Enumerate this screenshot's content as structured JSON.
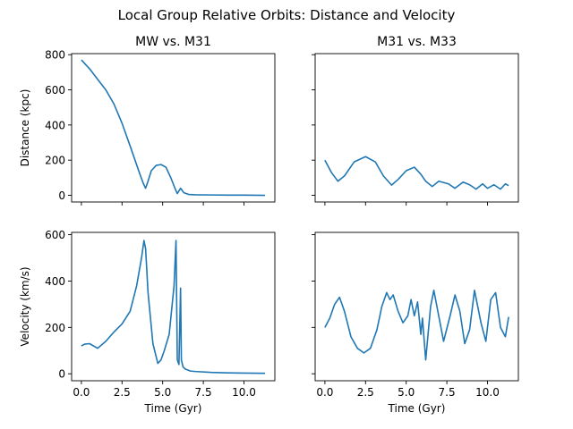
{
  "figure": {
    "suptitle": "Local Group Relative Orbits: Distance and Velocity"
  },
  "chart_data": [
    {
      "type": "line",
      "title": "MW vs. M31",
      "xlabel": "",
      "ylabel": "Distance (kpc)",
      "xlim": [
        -0.6,
        11.9
      ],
      "ylim": [
        -38,
        806
      ],
      "xticks": [
        0,
        2.5,
        5,
        7.5,
        10
      ],
      "xtick_labels_shown": false,
      "yticks": [
        0,
        200,
        400,
        600,
        800
      ],
      "ytick_labels": [
        "0",
        "200",
        "400",
        "600",
        "800"
      ],
      "grid": false,
      "color": "#1f77b4",
      "x": [
        0,
        0.5,
        1,
        1.5,
        2,
        2.5,
        3,
        3.3,
        3.6,
        3.8,
        3.95,
        4.1,
        4.3,
        4.6,
        4.9,
        5.2,
        5.5,
        5.8,
        5.9,
        6.1,
        6.3,
        6.6,
        7,
        8,
        9,
        10,
        11.3
      ],
      "y": [
        770,
        720,
        660,
        600,
        520,
        410,
        280,
        200,
        120,
        70,
        40,
        80,
        140,
        170,
        175,
        160,
        100,
        30,
        10,
        40,
        15,
        5,
        3,
        2,
        1,
        1,
        0
      ]
    },
    {
      "type": "line",
      "title": "M31 vs. M33",
      "xlabel": "",
      "ylabel": "",
      "xlim": [
        -0.6,
        11.9
      ],
      "ylim": [
        -38,
        806
      ],
      "xticks": [
        0,
        2.5,
        5,
        7.5,
        10
      ],
      "xtick_labels_shown": false,
      "yticks": [
        0,
        200,
        400,
        600,
        800
      ],
      "ytick_labels_shown": false,
      "grid": false,
      "color": "#1f77b4",
      "x": [
        0,
        0.4,
        0.8,
        1.2,
        1.8,
        2.5,
        3.1,
        3.6,
        4.1,
        4.5,
        5.0,
        5.5,
        5.9,
        6.2,
        6.6,
        7.0,
        7.6,
        8.0,
        8.5,
        8.9,
        9.3,
        9.7,
        10.0,
        10.4,
        10.8,
        11.1,
        11.3
      ],
      "y": [
        200,
        130,
        80,
        110,
        190,
        220,
        190,
        110,
        58,
        90,
        140,
        160,
        120,
        80,
        50,
        80,
        65,
        40,
        75,
        60,
        35,
        65,
        40,
        60,
        35,
        65,
        55
      ]
    },
    {
      "type": "line",
      "title": "",
      "xlabel": "Time (Gyr)",
      "ylabel": "Velocity (km/s)",
      "xlim": [
        -0.6,
        11.9
      ],
      "ylim": [
        -30,
        610
      ],
      "xticks": [
        0,
        2.5,
        5,
        7.5,
        10
      ],
      "xtick_labels": [
        "0.0",
        "2.5",
        "5.0",
        "7.5",
        "10.0"
      ],
      "yticks": [
        0,
        200,
        400,
        600
      ],
      "ytick_labels": [
        "0",
        "200",
        "400",
        "600"
      ],
      "grid": false,
      "color": "#1f77b4",
      "x": [
        0,
        0.2,
        0.5,
        1.0,
        1.5,
        2.0,
        2.5,
        3.0,
        3.4,
        3.7,
        3.85,
        3.95,
        4.1,
        4.4,
        4.7,
        4.9,
        5.1,
        5.4,
        5.7,
        5.82,
        5.9,
        6.0,
        6.1,
        6.15,
        6.25,
        6.4,
        6.7,
        7.0,
        8.0,
        9.0,
        10.0,
        11.3
      ],
      "y": [
        120,
        128,
        130,
        110,
        140,
        180,
        215,
        270,
        380,
        500,
        575,
        540,
        350,
        130,
        45,
        60,
        100,
        170,
        380,
        575,
        60,
        40,
        370,
        60,
        30,
        20,
        12,
        10,
        6,
        4,
        3,
        2
      ]
    },
    {
      "type": "line",
      "title": "",
      "xlabel": "Time (Gyr)",
      "ylabel": "",
      "xlim": [
        -0.6,
        11.9
      ],
      "ylim": [
        -30,
        610
      ],
      "xticks": [
        0,
        2.5,
        5,
        7.5,
        10
      ],
      "xtick_labels": [
        "0.0",
        "2.5",
        "5.0",
        "7.5",
        "10.0"
      ],
      "yticks": [
        0,
        200,
        400,
        600
      ],
      "ytick_labels_shown": false,
      "grid": false,
      "color": "#1f77b4",
      "x": [
        0,
        0.3,
        0.6,
        0.9,
        1.2,
        1.6,
        2.0,
        2.4,
        2.8,
        3.2,
        3.5,
        3.8,
        4.0,
        4.2,
        4.5,
        4.8,
        5.1,
        5.3,
        5.5,
        5.7,
        5.9,
        6.0,
        6.2,
        6.5,
        6.7,
        7.0,
        7.3,
        7.7,
        8.0,
        8.3,
        8.6,
        8.9,
        9.2,
        9.6,
        9.9,
        10.2,
        10.5,
        10.8,
        11.1,
        11.3
      ],
      "y": [
        200,
        240,
        300,
        330,
        270,
        160,
        110,
        90,
        110,
        190,
        290,
        350,
        320,
        340,
        270,
        220,
        250,
        320,
        250,
        310,
        170,
        240,
        60,
        290,
        360,
        250,
        140,
        250,
        340,
        270,
        130,
        190,
        360,
        220,
        140,
        320,
        350,
        200,
        160,
        245
      ]
    }
  ]
}
